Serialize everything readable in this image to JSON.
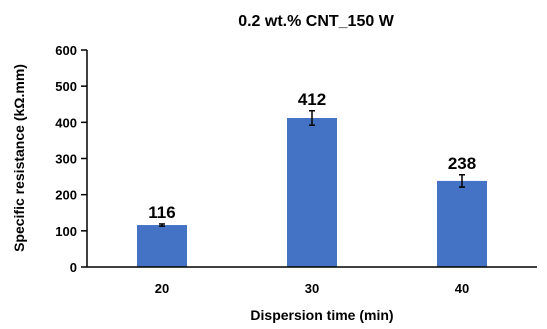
{
  "chart_data": {
    "type": "bar",
    "title": "0.2 wt.% CNT_150 W",
    "xlabel": "Dispersion time (min)",
    "ylabel": "Specific resistance (kΩ.mm)",
    "categories": [
      "20",
      "30",
      "40"
    ],
    "values": [
      116,
      412,
      238
    ],
    "errors": [
      3,
      20,
      17
    ],
    "data_labels": [
      "116",
      "412",
      "238"
    ],
    "ylim": [
      0,
      600
    ],
    "yticks": [
      0,
      100,
      200,
      300,
      400,
      500,
      600
    ],
    "ytick_labels": [
      "0",
      "100",
      "200",
      "300",
      "400",
      "500",
      "600"
    ],
    "grid": false,
    "legend": "none",
    "bar_color": "#4472C4"
  }
}
